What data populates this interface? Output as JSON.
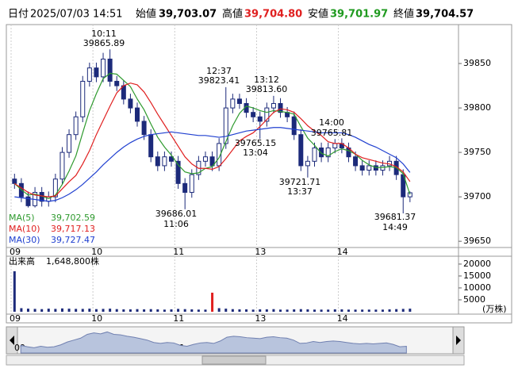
{
  "header": {
    "date_label": "日付",
    "datetime": "2025/07/03 14:51",
    "open_label": "始値",
    "open": "39,703.07",
    "high_label": "高値",
    "high": "39,704.80",
    "low_label": "安値",
    "low": "39,701.97",
    "close_label": "終値",
    "close": "39,704.57"
  },
  "chart_data": {
    "type": "candlestick",
    "ylim": [
      39643,
      39892
    ],
    "yticks": [
      39650,
      39700,
      39750,
      39800,
      39850
    ],
    "xlim": [
      0,
      65.5
    ],
    "xticks": [
      {
        "value": 0,
        "label": "09"
      },
      {
        "value": 12,
        "label": "10"
      },
      {
        "value": 24,
        "label": "11"
      },
      {
        "value": 36,
        "label": "13"
      },
      {
        "value": 48,
        "label": "14"
      }
    ],
    "up_color": "#ffffff",
    "down_color": "#1c2a7a",
    "open": [
      39720,
      39715,
      39700,
      39690,
      39705,
      39695,
      39700,
      39720,
      39750,
      39770,
      39790,
      39830,
      39845,
      39835,
      39855,
      39830,
      39825,
      39810,
      39800,
      39785,
      39770,
      39745,
      39735,
      39745,
      39740,
      39715,
      39705,
      39725,
      39740,
      39745,
      39735,
      39760,
      39800,
      39810,
      39805,
      39795,
      39790,
      39785,
      39800,
      39805,
      39795,
      39790,
      39770,
      39735,
      39740,
      39755,
      39745,
      39755,
      39760,
      39755,
      39745,
      39735,
      39730,
      39735,
      39730,
      39735,
      39740,
      39725,
      39700
    ],
    "high": [
      39726,
      39721,
      39706,
      39711,
      39711,
      39706,
      39726,
      39756,
      39776,
      39796,
      39836,
      39851,
      39851,
      39862,
      39865.89,
      39836,
      39831,
      39816,
      39806,
      39791,
      39776,
      39751,
      39751,
      39751,
      39746,
      39721,
      39731,
      39746,
      39751,
      39751,
      39766,
      39823.41,
      39816,
      39816,
      39811,
      39801,
      39796,
      39806,
      39813.6,
      39811,
      39801,
      39796,
      39776,
      39746,
      39761,
      39761,
      39761,
      39765,
      39765.81,
      39761,
      39751,
      39741,
      39741,
      39741,
      39741,
      39746,
      39746,
      39731,
      39706
    ],
    "low": [
      39709,
      39694,
      39688,
      39688,
      39689,
      39689,
      39694,
      39714,
      39744,
      39764,
      39784,
      39824,
      39829,
      39829,
      39824,
      39819,
      39804,
      39794,
      39779,
      39764,
      39739,
      39729,
      39729,
      39734,
      39709,
      39686.01,
      39699,
      39719,
      39734,
      39729,
      39729,
      39754,
      39794,
      39799,
      39789,
      39784,
      39765.15,
      39779,
      39794,
      39789,
      39784,
      39764,
      39729,
      39721.71,
      39734,
      39739,
      39739,
      39749,
      39749,
      39739,
      39729,
      39724,
      39724,
      39724,
      39724,
      39729,
      39719,
      39681.37,
      39694
    ],
    "close": [
      39715,
      39700,
      39690,
      39705,
      39695,
      39700,
      39720,
      39750,
      39770,
      39790,
      39830,
      39845,
      39835,
      39855,
      39830,
      39825,
      39810,
      39800,
      39785,
      39770,
      39745,
      39735,
      39745,
      39740,
      39715,
      39705,
      39725,
      39740,
      39745,
      39735,
      39760,
      39800,
      39810,
      39805,
      39795,
      39790,
      39785,
      39800,
      39805,
      39795,
      39790,
      39770,
      39735,
      39740,
      39755,
      39745,
      39755,
      39760,
      39755,
      39745,
      39735,
      39730,
      39735,
      39730,
      39735,
      39740,
      39725,
      39700,
      39704.57
    ],
    "series": [
      {
        "name": "MA(5)",
        "label": "39,702.59",
        "color": "#2e9a2e",
        "values": [
          39715,
          39708,
          39702,
          39703,
          39701,
          39698,
          39702,
          39714,
          39729,
          39746,
          39772,
          39797,
          39816,
          39833,
          39839,
          39838,
          39831,
          39824,
          39810,
          39798,
          39782,
          39767,
          39756,
          39747,
          39736,
          39728,
          39726,
          39727,
          39732,
          39734,
          39744,
          39762,
          39780,
          39794,
          39802,
          39800,
          39797,
          39795,
          39797,
          39796,
          39795,
          39793,
          39779,
          39766,
          39758,
          39749,
          39746,
          39751,
          39754,
          39752,
          39748,
          39741,
          39736,
          39733,
          39733,
          39734,
          39733,
          39726,
          39702.59
        ]
      },
      {
        "name": "MA(10)",
        "label": "39,717.13",
        "color": "#e02020",
        "values": [
          39715,
          39710,
          39705,
          39702,
          39701,
          39700,
          39701,
          39709,
          39717,
          39724,
          39737,
          39752,
          39770,
          39786,
          39802,
          39817,
          39825,
          39828,
          39826,
          39818,
          39806,
          39793,
          39781,
          39769,
          39757,
          39745,
          39737,
          39732,
          39732,
          39731,
          39734,
          39743,
          39753,
          39763,
          39768,
          39772,
          39779,
          39787,
          39795,
          39799,
          39798,
          39795,
          39788,
          39780,
          39774,
          39769,
          39762,
          39760,
          39760,
          39755,
          39748,
          39744,
          39742,
          39740,
          39738,
          39737,
          39734,
          39728,
          39717.13
        ]
      },
      {
        "name": "MA(30)",
        "label": "39,727.47",
        "color": "#2040d0",
        "values": [
          39700,
          39699,
          39698,
          39697,
          39696,
          39695,
          39696,
          39699,
          39703,
          39708,
          39714,
          39721,
          39728,
          39736,
          39743,
          39750,
          39756,
          39761,
          39765,
          39768,
          39770,
          39771,
          39772,
          39773,
          39772,
          39771,
          39770,
          39769,
          39769,
          39768,
          39767,
          39768,
          39770,
          39772,
          39774,
          39775,
          39776,
          39777,
          39778,
          39778,
          39777,
          39776,
          39775,
          39774,
          39773,
          39772,
          39772,
          39772,
          39772,
          39770,
          39767,
          39763,
          39759,
          39756,
          39752,
          39748,
          39744,
          39737,
          39727.47
        ]
      }
    ],
    "annotations": [
      {
        "time": "10:11",
        "price": "39865.89"
      },
      {
        "time": "12:37",
        "price": "39823.41"
      },
      {
        "time": "13:12",
        "price": "39813.60"
      },
      {
        "time": "13:04",
        "price": "39765.15"
      },
      {
        "time": "14:00",
        "price": "39765.81"
      },
      {
        "time": "13:37",
        "price": "39721.71"
      },
      {
        "time": "11:06",
        "price": "39686.01"
      },
      {
        "time": "14:49",
        "price": "39681.37"
      }
    ],
    "volume": {
      "title": "出来高",
      "total": "1,648,800株",
      "unit": "(万株)",
      "color": "#1c2a7a",
      "spike_color": "#e02020",
      "ylim": [
        0,
        22300
      ],
      "yticks": [
        5000,
        10000,
        15000,
        20000
      ],
      "values": [
        17000,
        1500,
        1300,
        1200,
        1100,
        1300,
        1200,
        1400,
        1300,
        1200,
        1200,
        1300,
        1100,
        1200,
        1300,
        1100,
        1000,
        1000,
        1100,
        1000,
        1100,
        1000,
        900,
        1000,
        1200,
        1100,
        1000,
        900,
        900,
        8000,
        1500,
        1300,
        1100,
        1000,
        1000,
        900,
        1000,
        1000,
        1100,
        900,
        900,
        1000,
        1100,
        1000,
        900,
        900,
        900,
        1000,
        1000,
        900,
        900,
        900,
        900,
        900,
        900,
        1000,
        1100,
        1200,
        1300
      ]
    }
  }
}
